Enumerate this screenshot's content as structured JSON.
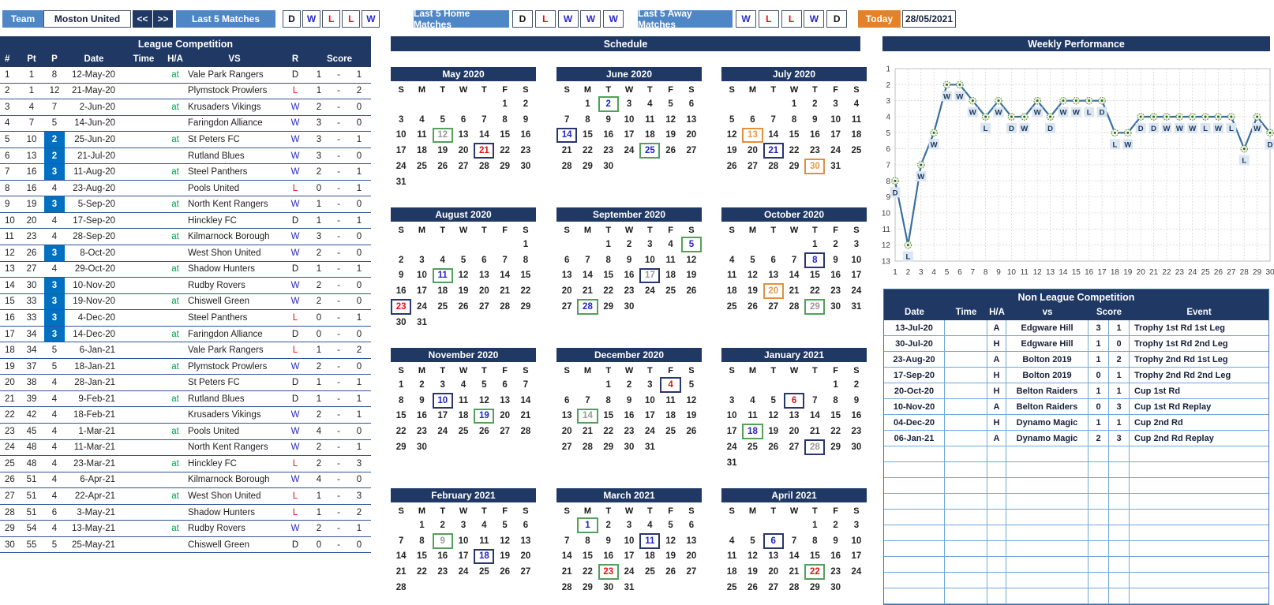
{
  "topbar": {
    "team_label": "Team",
    "team_name": "Moston United",
    "prev": "<<",
    "next": ">>",
    "last5": {
      "label": "Last 5 Matches",
      "results": [
        "D",
        "W",
        "L",
        "L",
        "W"
      ]
    },
    "last5_home": {
      "label": "Last 5 Home Matches",
      "results": [
        "D",
        "L",
        "W",
        "W",
        "W"
      ]
    },
    "last5_away": {
      "label": "Last 5 Away Matches",
      "results": [
        "W",
        "L",
        "L",
        "W",
        "D"
      ]
    },
    "today_label": "Today",
    "today_date": "28/05/2021"
  },
  "league": {
    "title": "League Competition",
    "columns": [
      "#",
      "Pt",
      "P",
      "Date",
      "Time",
      "H/A",
      "VS",
      "R",
      "Score"
    ],
    "rows": [
      {
        "n": 1,
        "pt": 1,
        "p": 8,
        "hl": false,
        "date": "12-May-20",
        "time": "",
        "ha": "at",
        "vs": "Vale Park Rangers",
        "r": "D",
        "s1": 1,
        "s2": 1
      },
      {
        "n": 2,
        "pt": 1,
        "p": 12,
        "hl": false,
        "date": "21-May-20",
        "time": "",
        "ha": "",
        "vs": "Plymstock Prowlers",
        "r": "L",
        "s1": 1,
        "s2": 2
      },
      {
        "n": 3,
        "pt": 4,
        "p": 7,
        "hl": false,
        "date": "2-Jun-20",
        "time": "",
        "ha": "at",
        "vs": "Krusaders Vikings",
        "r": "W",
        "s1": 2,
        "s2": 0
      },
      {
        "n": 4,
        "pt": 7,
        "p": 5,
        "hl": false,
        "date": "14-Jun-20",
        "time": "",
        "ha": "",
        "vs": "Faringdon Alliance",
        "r": "W",
        "s1": 3,
        "s2": 0
      },
      {
        "n": 5,
        "pt": 10,
        "p": 2,
        "hl": true,
        "date": "25-Jun-20",
        "time": "",
        "ha": "at",
        "vs": "St Peters FC",
        "r": "W",
        "s1": 3,
        "s2": 1
      },
      {
        "n": 6,
        "pt": 13,
        "p": 2,
        "hl": true,
        "date": "21-Jul-20",
        "time": "",
        "ha": "",
        "vs": "Rutland Blues",
        "r": "W",
        "s1": 3,
        "s2": 0
      },
      {
        "n": 7,
        "pt": 16,
        "p": 3,
        "hl": true,
        "date": "11-Aug-20",
        "time": "",
        "ha": "at",
        "vs": "Steel Panthers",
        "r": "W",
        "s1": 2,
        "s2": 1
      },
      {
        "n": 8,
        "pt": 16,
        "p": 4,
        "hl": false,
        "date": "23-Aug-20",
        "time": "",
        "ha": "",
        "vs": "Pools United",
        "r": "L",
        "s1": 0,
        "s2": 1
      },
      {
        "n": 9,
        "pt": 19,
        "p": 3,
        "hl": true,
        "date": "5-Sep-20",
        "time": "",
        "ha": "at",
        "vs": "North Kent Rangers",
        "r": "W",
        "s1": 1,
        "s2": 0
      },
      {
        "n": 10,
        "pt": 20,
        "p": 4,
        "hl": false,
        "date": "17-Sep-20",
        "time": "",
        "ha": "",
        "vs": "Hinckley FC",
        "r": "D",
        "s1": 1,
        "s2": 1
      },
      {
        "n": 11,
        "pt": 23,
        "p": 4,
        "hl": false,
        "date": "28-Sep-20",
        "time": "",
        "ha": "at",
        "vs": "Kilmarnock Borough",
        "r": "W",
        "s1": 3,
        "s2": 0
      },
      {
        "n": 12,
        "pt": 26,
        "p": 3,
        "hl": true,
        "date": "8-Oct-20",
        "time": "",
        "ha": "",
        "vs": "West Shon United",
        "r": "W",
        "s1": 2,
        "s2": 0
      },
      {
        "n": 13,
        "pt": 27,
        "p": 4,
        "hl": false,
        "date": "29-Oct-20",
        "time": "",
        "ha": "at",
        "vs": "Shadow Hunters",
        "r": "D",
        "s1": 1,
        "s2": 1
      },
      {
        "n": 14,
        "pt": 30,
        "p": 3,
        "hl": true,
        "date": "10-Nov-20",
        "time": "",
        "ha": "",
        "vs": "Rudby Rovers",
        "r": "W",
        "s1": 2,
        "s2": 0
      },
      {
        "n": 15,
        "pt": 33,
        "p": 3,
        "hl": true,
        "date": "19-Nov-20",
        "time": "",
        "ha": "at",
        "vs": "Chiswell Green",
        "r": "W",
        "s1": 2,
        "s2": 0
      },
      {
        "n": 16,
        "pt": 33,
        "p": 3,
        "hl": true,
        "date": "4-Dec-20",
        "time": "",
        "ha": "",
        "vs": "Steel Panthers",
        "r": "L",
        "s1": 0,
        "s2": 1
      },
      {
        "n": 17,
        "pt": 34,
        "p": 3,
        "hl": true,
        "date": "14-Dec-20",
        "time": "",
        "ha": "at",
        "vs": "Faringdon Alliance",
        "r": "D",
        "s1": 0,
        "s2": 0
      },
      {
        "n": 18,
        "pt": 34,
        "p": 5,
        "hl": false,
        "date": "6-Jan-21",
        "time": "",
        "ha": "",
        "vs": "Vale Park Rangers",
        "r": "L",
        "s1": 1,
        "s2": 2
      },
      {
        "n": 19,
        "pt": 37,
        "p": 5,
        "hl": false,
        "date": "18-Jan-21",
        "time": "",
        "ha": "at",
        "vs": "Plymstock Prowlers",
        "r": "W",
        "s1": 2,
        "s2": 0
      },
      {
        "n": 20,
        "pt": 38,
        "p": 4,
        "hl": false,
        "date": "28-Jan-21",
        "time": "",
        "ha": "",
        "vs": "St Peters FC",
        "r": "D",
        "s1": 1,
        "s2": 1
      },
      {
        "n": 21,
        "pt": 39,
        "p": 4,
        "hl": false,
        "date": "9-Feb-21",
        "time": "",
        "ha": "at",
        "vs": "Rutland Blues",
        "r": "D",
        "s1": 1,
        "s2": 1
      },
      {
        "n": 22,
        "pt": 42,
        "p": 4,
        "hl": false,
        "date": "18-Feb-21",
        "time": "",
        "ha": "",
        "vs": "Krusaders Vikings",
        "r": "W",
        "s1": 2,
        "s2": 1
      },
      {
        "n": 23,
        "pt": 45,
        "p": 4,
        "hl": false,
        "date": "1-Mar-21",
        "time": "",
        "ha": "at",
        "vs": "Pools United",
        "r": "W",
        "s1": 4,
        "s2": 0
      },
      {
        "n": 24,
        "pt": 48,
        "p": 4,
        "hl": false,
        "date": "11-Mar-21",
        "time": "",
        "ha": "",
        "vs": "North Kent Rangers",
        "r": "W",
        "s1": 2,
        "s2": 1
      },
      {
        "n": 25,
        "pt": 48,
        "p": 4,
        "hl": false,
        "date": "23-Mar-21",
        "time": "",
        "ha": "at",
        "vs": "Hinckley FC",
        "r": "L",
        "s1": 2,
        "s2": 3
      },
      {
        "n": 26,
        "pt": 51,
        "p": 4,
        "hl": false,
        "date": "6-Apr-21",
        "time": "",
        "ha": "",
        "vs": "Kilmarnock Borough",
        "r": "W",
        "s1": 4,
        "s2": 0
      },
      {
        "n": 27,
        "pt": 51,
        "p": 4,
        "hl": false,
        "date": "22-Apr-21",
        "time": "",
        "ha": "at",
        "vs": "West Shon United",
        "r": "L",
        "s1": 1,
        "s2": 3
      },
      {
        "n": 28,
        "pt": 51,
        "p": 6,
        "hl": false,
        "date": "3-May-21",
        "time": "",
        "ha": "",
        "vs": "Shadow Hunters",
        "r": "L",
        "s1": 1,
        "s2": 2
      },
      {
        "n": 29,
        "pt": 54,
        "p": 4,
        "hl": false,
        "date": "13-May-21",
        "time": "",
        "ha": "at",
        "vs": "Rudby Rovers",
        "r": "W",
        "s1": 2,
        "s2": 1
      },
      {
        "n": 30,
        "pt": 55,
        "p": 5,
        "hl": false,
        "date": "25-May-21",
        "time": "",
        "ha": "",
        "vs": "Chiswell Green",
        "r": "D",
        "s1": 0,
        "s2": 0
      }
    ]
  },
  "schedule": {
    "title": "Schedule",
    "dow": [
      "S",
      "M",
      "T",
      "W",
      "T",
      "F",
      "S"
    ],
    "months": [
      {
        "name": "May 2020",
        "start": 5,
        "days": 31,
        "marks": {
          "12": {
            "b": "away",
            "t": "D"
          },
          "21": {
            "b": "home",
            "t": "L"
          }
        }
      },
      {
        "name": "June 2020",
        "start": 1,
        "days": 30,
        "marks": {
          "2": {
            "b": "away",
            "t": "W"
          },
          "14": {
            "b": "home",
            "t": "W"
          },
          "25": {
            "b": "away",
            "t": "W"
          }
        }
      },
      {
        "name": "July 2020",
        "start": 3,
        "days": 31,
        "marks": {
          "13": {
            "b": "cup",
            "t": "C"
          },
          "21": {
            "b": "home",
            "t": "W"
          },
          "30": {
            "b": "cup",
            "t": "C"
          }
        }
      },
      {
        "name": "August 2020",
        "start": 6,
        "days": 31,
        "marks": {
          "11": {
            "b": "away",
            "t": "W"
          },
          "23": {
            "b": "home",
            "t": "L"
          }
        }
      },
      {
        "name": "September 2020",
        "start": 2,
        "days": 30,
        "marks": {
          "5": {
            "b": "away",
            "t": "W"
          },
          "17": {
            "b": "home",
            "t": "D"
          },
          "28": {
            "b": "away",
            "t": "W"
          }
        }
      },
      {
        "name": "October 2020",
        "start": 4,
        "days": 31,
        "marks": {
          "8": {
            "b": "home",
            "t": "W"
          },
          "20": {
            "b": "cup",
            "t": "C"
          },
          "29": {
            "b": "away",
            "t": "D"
          }
        }
      },
      {
        "name": "November 2020",
        "start": 0,
        "days": 30,
        "marks": {
          "10": {
            "b": "home",
            "t": "W"
          },
          "19": {
            "b": "away",
            "t": "W"
          }
        }
      },
      {
        "name": "December 2020",
        "start": 2,
        "days": 31,
        "marks": {
          "4": {
            "b": "home",
            "t": "L"
          },
          "14": {
            "b": "away",
            "t": "D"
          }
        }
      },
      {
        "name": "January 2021",
        "start": 5,
        "days": 31,
        "marks": {
          "6": {
            "b": "home",
            "t": "L"
          },
          "18": {
            "b": "away",
            "t": "W"
          },
          "28": {
            "b": "home",
            "t": "D"
          }
        }
      },
      {
        "name": "February 2021",
        "start": 1,
        "days": 28,
        "marks": {
          "9": {
            "b": "away",
            "t": "D"
          },
          "18": {
            "b": "home",
            "t": "W"
          }
        }
      },
      {
        "name": "March 2021",
        "start": 1,
        "days": 31,
        "marks": {
          "1": {
            "b": "away",
            "t": "W"
          },
          "11": {
            "b": "home",
            "t": "W"
          },
          "23": {
            "b": "away",
            "t": "L"
          }
        }
      },
      {
        "name": "April 2021",
        "start": 4,
        "days": 30,
        "marks": {
          "6": {
            "b": "home",
            "t": "W"
          },
          "22": {
            "b": "away",
            "t": "L"
          }
        }
      }
    ]
  },
  "performance": {
    "title": "Weekly Performance"
  },
  "chart_data": {
    "type": "line",
    "title": "Weekly Performance",
    "x": [
      1,
      2,
      3,
      4,
      5,
      6,
      7,
      8,
      9,
      10,
      11,
      12,
      13,
      14,
      15,
      16,
      17,
      18,
      19,
      20,
      21,
      22,
      23,
      24,
      25,
      26,
      27,
      28,
      29,
      30
    ],
    "positions": [
      8,
      12,
      7,
      5,
      2,
      2,
      3,
      4,
      3,
      4,
      4,
      3,
      4,
      3,
      3,
      3,
      3,
      5,
      5,
      4,
      4,
      4,
      4,
      4,
      4,
      4,
      4,
      6,
      4,
      5
    ],
    "labels": [
      "D",
      "L",
      "W",
      "W",
      "W",
      "W",
      "W",
      "L",
      "W",
      "D",
      "W",
      "W",
      "D",
      "W",
      "W",
      "L",
      "D",
      "L",
      "W",
      "D",
      "D",
      "W",
      "W",
      "W",
      "L",
      "W",
      "L",
      "L",
      "W",
      "D"
    ],
    "xlabel": "",
    "ylabel": "",
    "ylim": [
      1,
      13
    ],
    "y_inverted": true,
    "grid": true,
    "legend": "none"
  },
  "non_league": {
    "title": "Non League Competition",
    "columns": [
      "Date",
      "Time",
      "H/A",
      "vs",
      "Score",
      "Event"
    ],
    "rows": [
      {
        "date": "13-Jul-20",
        "time": "",
        "ha": "A",
        "vs": "Edgware Hill",
        "s1": 3,
        "s2": 1,
        "event": "Trophy 1st Rd 1st Leg"
      },
      {
        "date": "30-Jul-20",
        "time": "",
        "ha": "H",
        "vs": "Edgware Hill",
        "s1": 1,
        "s2": 0,
        "event": "Trophy 1st Rd 2nd Leg"
      },
      {
        "date": "23-Aug-20",
        "time": "",
        "ha": "A",
        "vs": "Bolton 2019",
        "s1": 1,
        "s2": 2,
        "event": "Trophy 2nd Rd 1st Leg"
      },
      {
        "date": "17-Sep-20",
        "time": "",
        "ha": "H",
        "vs": "Bolton 2019",
        "s1": 0,
        "s2": 1,
        "event": "Trophy 2nd Rd 2nd Leg"
      },
      {
        "date": "20-Oct-20",
        "time": "",
        "ha": "H",
        "vs": "Belton Raiders",
        "s1": 1,
        "s2": 1,
        "event": "Cup 1st Rd"
      },
      {
        "date": "10-Nov-20",
        "time": "",
        "ha": "A",
        "vs": "Belton Raiders",
        "s1": 0,
        "s2": 3,
        "event": "Cup 1st Rd Replay"
      },
      {
        "date": "04-Dec-20",
        "time": "",
        "ha": "H",
        "vs": "Dynamo Magic",
        "s1": 1,
        "s2": 1,
        "event": "Cup 2nd Rd"
      },
      {
        "date": "06-Jan-21",
        "time": "",
        "ha": "A",
        "vs": "Dynamo Magic",
        "s1": 2,
        "s2": 3,
        "event": "Cup 2nd Rd Replay"
      }
    ],
    "empty_rows": 10
  },
  "colors": {
    "navy": "#1f3864",
    "button_blue": "#4e86c6",
    "position_highlight": "#0070c0",
    "win": "#2929c8",
    "loss": "#e01010",
    "draw_gray": "#9a9a9a",
    "away_green": "#53a05a",
    "cup_orange": "#e0913e",
    "today_orange": "#e2822b",
    "at_green": "#00a050",
    "chart_line": "#3a6fa5",
    "label_bg": "#dce6f1"
  }
}
